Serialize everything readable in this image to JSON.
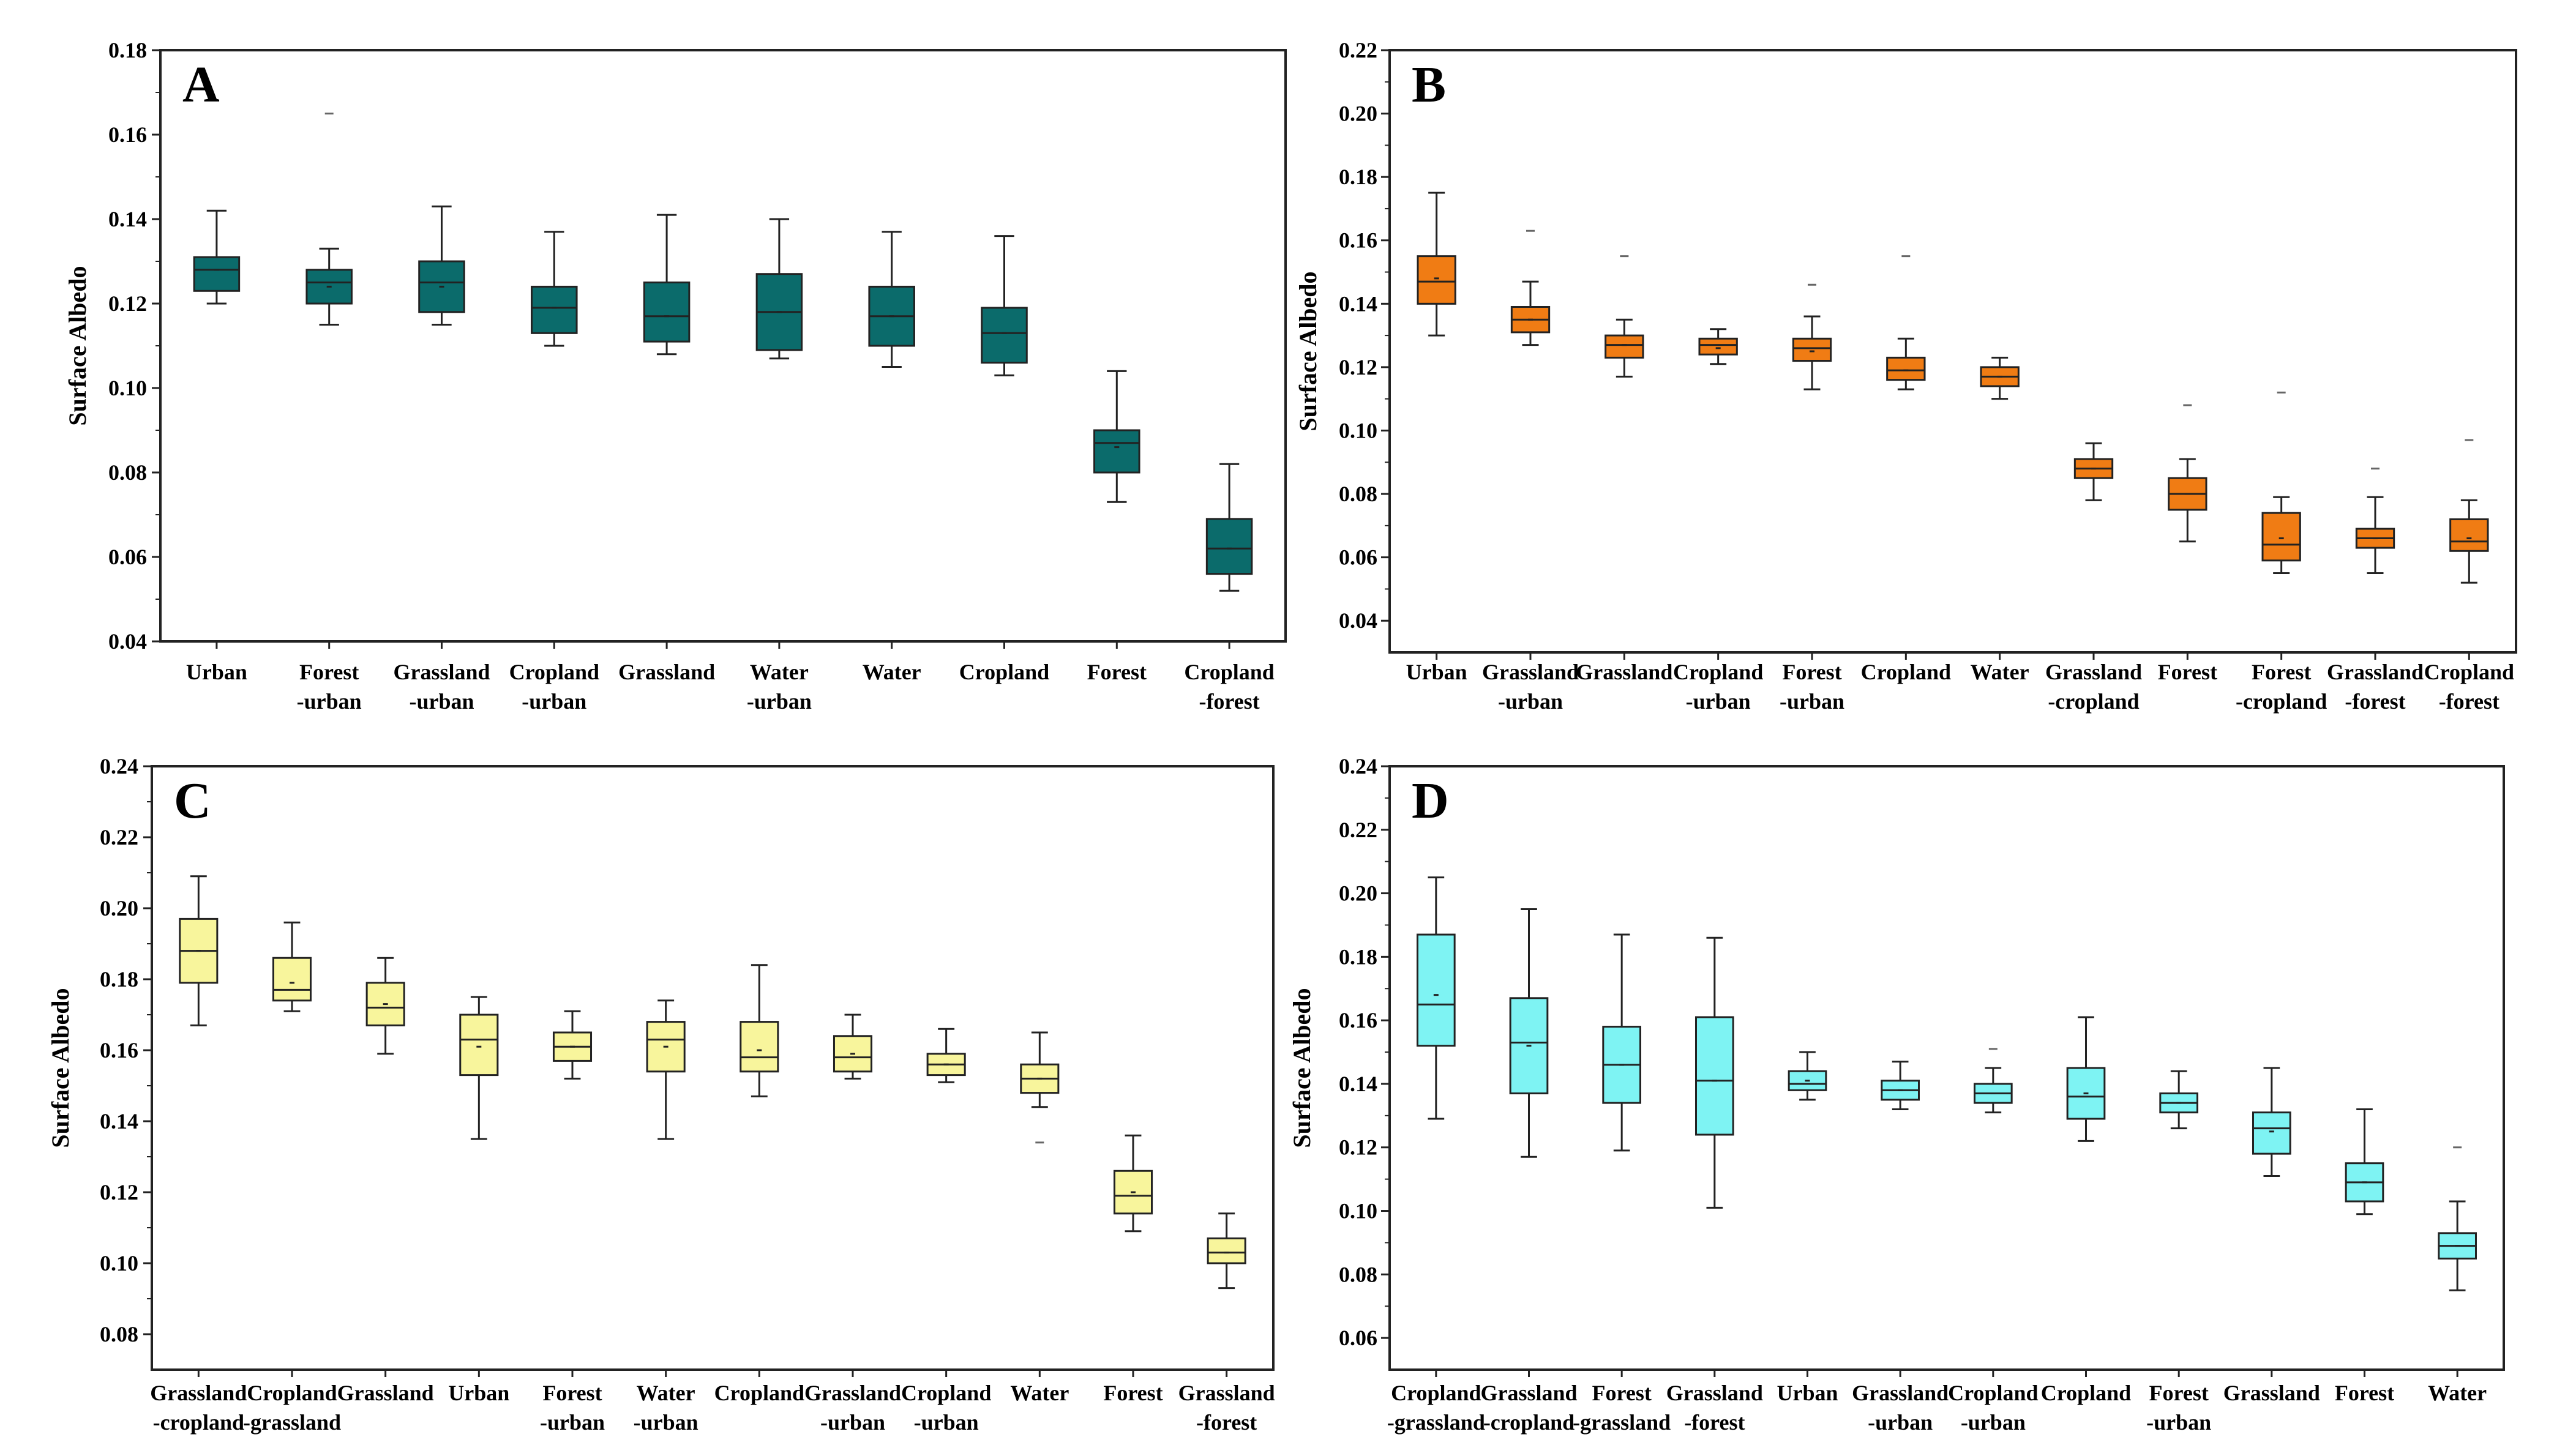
{
  "figure": {
    "panels": [
      "A",
      "B",
      "C",
      "D"
    ]
  },
  "chart_data": [
    {
      "type": "box",
      "title": "A",
      "ylabel": "Surface Albedo",
      "xlabel": "",
      "ylim": [
        0.04,
        0.18
      ],
      "yticks": [
        "0.04",
        "0.06",
        "0.08",
        "0.10",
        "0.12",
        "0.14",
        "0.16",
        "0.18"
      ],
      "color": "#0b6b6b",
      "categories": [
        [
          "Urban"
        ],
        [
          "Forest",
          "-urban"
        ],
        [
          "Grassland",
          "-urban"
        ],
        [
          "Cropland",
          "-urban"
        ],
        [
          "Grassland"
        ],
        [
          "Water",
          "-urban"
        ],
        [
          "Water"
        ],
        [
          "Cropland"
        ],
        [
          "Forest"
        ],
        [
          "Cropland",
          "-forest"
        ]
      ],
      "boxes": [
        {
          "whislo": 0.12,
          "q1": 0.123,
          "med": 0.128,
          "q3": 0.131,
          "whishi": 0.142,
          "mean": 0.128
        },
        {
          "whislo": 0.115,
          "q1": 0.12,
          "med": 0.125,
          "q3": 0.128,
          "whishi": 0.133,
          "mean": 0.124,
          "outliers": [
            0.165
          ]
        },
        {
          "whislo": 0.115,
          "q1": 0.118,
          "med": 0.125,
          "q3": 0.13,
          "whishi": 0.143,
          "mean": 0.124
        },
        {
          "whislo": 0.11,
          "q1": 0.113,
          "med": 0.119,
          "q3": 0.124,
          "whishi": 0.137,
          "mean": 0.119
        },
        {
          "whislo": 0.108,
          "q1": 0.111,
          "med": 0.117,
          "q3": 0.125,
          "whishi": 0.141,
          "mean": 0.117
        },
        {
          "whislo": 0.107,
          "q1": 0.109,
          "med": 0.118,
          "q3": 0.127,
          "whishi": 0.14,
          "mean": 0.118
        },
        {
          "whislo": 0.105,
          "q1": 0.11,
          "med": 0.117,
          "q3": 0.124,
          "whishi": 0.137,
          "mean": 0.117
        },
        {
          "whislo": 0.103,
          "q1": 0.106,
          "med": 0.113,
          "q3": 0.119,
          "whishi": 0.136,
          "mean": 0.113
        },
        {
          "whislo": 0.073,
          "q1": 0.08,
          "med": 0.087,
          "q3": 0.09,
          "whishi": 0.104,
          "mean": 0.086
        },
        {
          "whislo": 0.052,
          "q1": 0.056,
          "med": 0.062,
          "q3": 0.069,
          "whishi": 0.082,
          "mean": 0.062
        }
      ]
    },
    {
      "type": "box",
      "title": "B",
      "ylabel": "Surface Albedo",
      "xlabel": "",
      "ylim": [
        0.03,
        0.22
      ],
      "yticks": [
        "0.04",
        "0.06",
        "0.08",
        "0.10",
        "0.12",
        "0.14",
        "0.16",
        "0.18",
        "0.20",
        "0.22"
      ],
      "color": "#f07c14",
      "categories": [
        [
          "Urban"
        ],
        [
          "Grassland",
          "-urban"
        ],
        [
          "Grassland"
        ],
        [
          "Cropland",
          "-urban"
        ],
        [
          "Forest",
          "-urban"
        ],
        [
          "Cropland"
        ],
        [
          "Water"
        ],
        [
          "Grassland",
          "-cropland"
        ],
        [
          "Forest"
        ],
        [
          "Forest",
          "-cropland"
        ],
        [
          "Grassland",
          "-forest"
        ],
        [
          "Cropland",
          "-forest"
        ]
      ],
      "boxes": [
        {
          "whislo": 0.13,
          "q1": 0.14,
          "med": 0.147,
          "q3": 0.155,
          "whishi": 0.175,
          "mean": 0.148
        },
        {
          "whislo": 0.127,
          "q1": 0.131,
          "med": 0.135,
          "q3": 0.139,
          "whishi": 0.147,
          "mean": 0.135,
          "outliers": [
            0.163
          ]
        },
        {
          "whislo": 0.117,
          "q1": 0.123,
          "med": 0.127,
          "q3": 0.13,
          "whishi": 0.135,
          "mean": 0.127,
          "outliers": [
            0.155
          ]
        },
        {
          "whislo": 0.121,
          "q1": 0.124,
          "med": 0.127,
          "q3": 0.129,
          "whishi": 0.132,
          "mean": 0.126
        },
        {
          "whislo": 0.113,
          "q1": 0.122,
          "med": 0.126,
          "q3": 0.129,
          "whishi": 0.136,
          "mean": 0.125,
          "outliers": [
            0.146
          ]
        },
        {
          "whislo": 0.113,
          "q1": 0.116,
          "med": 0.119,
          "q3": 0.123,
          "whishi": 0.129,
          "mean": 0.119,
          "outliers": [
            0.155
          ]
        },
        {
          "whislo": 0.11,
          "q1": 0.114,
          "med": 0.117,
          "q3": 0.12,
          "whishi": 0.123,
          "mean": 0.117
        },
        {
          "whislo": 0.078,
          "q1": 0.085,
          "med": 0.088,
          "q3": 0.091,
          "whishi": 0.096,
          "mean": 0.088
        },
        {
          "whislo": 0.065,
          "q1": 0.075,
          "med": 0.08,
          "q3": 0.085,
          "whishi": 0.091,
          "mean": 0.08,
          "outliers": [
            0.108
          ]
        },
        {
          "whislo": 0.055,
          "q1": 0.059,
          "med": 0.064,
          "q3": 0.074,
          "whishi": 0.079,
          "mean": 0.066,
          "outliers": [
            0.112
          ]
        },
        {
          "whislo": 0.055,
          "q1": 0.063,
          "med": 0.066,
          "q3": 0.069,
          "whishi": 0.079,
          "mean": 0.066,
          "outliers": [
            0.088
          ]
        },
        {
          "whislo": 0.052,
          "q1": 0.062,
          "med": 0.065,
          "q3": 0.072,
          "whishi": 0.078,
          "mean": 0.066,
          "outliers": [
            0.097
          ]
        }
      ]
    },
    {
      "type": "box",
      "title": "C",
      "ylabel": "Surface Albedo",
      "xlabel": "",
      "ylim": [
        0.07,
        0.24
      ],
      "yticks": [
        "0.08",
        "0.10",
        "0.12",
        "0.14",
        "0.16",
        "0.18",
        "0.20",
        "0.22",
        "0.24"
      ],
      "color": "#f8f59c",
      "categories": [
        [
          "Grassland",
          "-cropland"
        ],
        [
          "Cropland",
          "-grassland"
        ],
        [
          "Grassland"
        ],
        [
          "Urban"
        ],
        [
          "Forest",
          "-urban"
        ],
        [
          "Water",
          "-urban"
        ],
        [
          "Cropland"
        ],
        [
          "Grassland",
          "-urban"
        ],
        [
          "Cropland",
          "-urban"
        ],
        [
          "Water"
        ],
        [
          "Forest"
        ],
        [
          "Grassland",
          "-forest"
        ]
      ],
      "boxes": [
        {
          "whislo": 0.167,
          "q1": 0.179,
          "med": 0.188,
          "q3": 0.197,
          "whishi": 0.209,
          "mean": 0.188
        },
        {
          "whislo": 0.171,
          "q1": 0.174,
          "med": 0.177,
          "q3": 0.186,
          "whishi": 0.196,
          "mean": 0.179
        },
        {
          "whislo": 0.159,
          "q1": 0.167,
          "med": 0.172,
          "q3": 0.179,
          "whishi": 0.186,
          "mean": 0.173
        },
        {
          "whislo": 0.135,
          "q1": 0.153,
          "med": 0.163,
          "q3": 0.17,
          "whishi": 0.175,
          "mean": 0.161
        },
        {
          "whislo": 0.152,
          "q1": 0.157,
          "med": 0.161,
          "q3": 0.165,
          "whishi": 0.171,
          "mean": 0.161
        },
        {
          "whislo": 0.135,
          "q1": 0.154,
          "med": 0.163,
          "q3": 0.168,
          "whishi": 0.174,
          "mean": 0.161
        },
        {
          "whislo": 0.147,
          "q1": 0.154,
          "med": 0.158,
          "q3": 0.168,
          "whishi": 0.184,
          "mean": 0.16
        },
        {
          "whislo": 0.152,
          "q1": 0.154,
          "med": 0.158,
          "q3": 0.164,
          "whishi": 0.17,
          "mean": 0.159
        },
        {
          "whislo": 0.151,
          "q1": 0.153,
          "med": 0.156,
          "q3": 0.159,
          "whishi": 0.166,
          "mean": 0.156
        },
        {
          "whislo": 0.144,
          "q1": 0.148,
          "med": 0.152,
          "q3": 0.156,
          "whishi": 0.165,
          "mean": 0.152,
          "outliers": [
            0.134
          ]
        },
        {
          "whislo": 0.109,
          "q1": 0.114,
          "med": 0.119,
          "q3": 0.126,
          "whishi": 0.136,
          "mean": 0.12
        },
        {
          "whislo": 0.093,
          "q1": 0.1,
          "med": 0.103,
          "q3": 0.107,
          "whishi": 0.114,
          "mean": 0.103
        }
      ]
    },
    {
      "type": "box",
      "title": "D",
      "ylabel": "Surface Albedo",
      "xlabel": "",
      "ylim": [
        0.05,
        0.24
      ],
      "yticks": [
        "0.06",
        "0.08",
        "0.10",
        "0.12",
        "0.14",
        "0.16",
        "0.18",
        "0.20",
        "0.22",
        "0.24"
      ],
      "color": "#7ef3f3",
      "categories": [
        [
          "Cropland",
          "-grassland"
        ],
        [
          "Grassland",
          "-cropland"
        ],
        [
          "Forest",
          "-grassland"
        ],
        [
          "Grassland",
          "-forest"
        ],
        [
          "Urban"
        ],
        [
          "Grassland",
          "-urban"
        ],
        [
          "Cropland",
          "-urban"
        ],
        [
          "Cropland"
        ],
        [
          "Forest",
          "-urban"
        ],
        [
          "Grassland"
        ],
        [
          "Forest"
        ],
        [
          "Water"
        ]
      ],
      "boxes": [
        {
          "whislo": 0.129,
          "q1": 0.152,
          "med": 0.165,
          "q3": 0.187,
          "whishi": 0.205,
          "mean": 0.168
        },
        {
          "whislo": 0.117,
          "q1": 0.137,
          "med": 0.153,
          "q3": 0.167,
          "whishi": 0.195,
          "mean": 0.152
        },
        {
          "whislo": 0.119,
          "q1": 0.134,
          "med": 0.146,
          "q3": 0.158,
          "whishi": 0.187,
          "mean": 0.146
        },
        {
          "whislo": 0.101,
          "q1": 0.124,
          "med": 0.141,
          "q3": 0.161,
          "whishi": 0.186,
          "mean": 0.141
        },
        {
          "whislo": 0.135,
          "q1": 0.138,
          "med": 0.14,
          "q3": 0.144,
          "whishi": 0.15,
          "mean": 0.141
        },
        {
          "whislo": 0.132,
          "q1": 0.135,
          "med": 0.138,
          "q3": 0.141,
          "whishi": 0.147,
          "mean": 0.138
        },
        {
          "whislo": 0.131,
          "q1": 0.134,
          "med": 0.137,
          "q3": 0.14,
          "whishi": 0.145,
          "mean": 0.137,
          "outliers": [
            0.151
          ]
        },
        {
          "whislo": 0.122,
          "q1": 0.129,
          "med": 0.136,
          "q3": 0.145,
          "whishi": 0.161,
          "mean": 0.137
        },
        {
          "whislo": 0.126,
          "q1": 0.131,
          "med": 0.134,
          "q3": 0.137,
          "whishi": 0.144,
          "mean": 0.134
        },
        {
          "whislo": 0.111,
          "q1": 0.118,
          "med": 0.126,
          "q3": 0.131,
          "whishi": 0.145,
          "mean": 0.125
        },
        {
          "whislo": 0.099,
          "q1": 0.103,
          "med": 0.109,
          "q3": 0.115,
          "whishi": 0.132,
          "mean": 0.109
        },
        {
          "whislo": 0.075,
          "q1": 0.085,
          "med": 0.089,
          "q3": 0.093,
          "whishi": 0.103,
          "mean": 0.089,
          "outliers": [
            0.12
          ]
        }
      ]
    }
  ]
}
